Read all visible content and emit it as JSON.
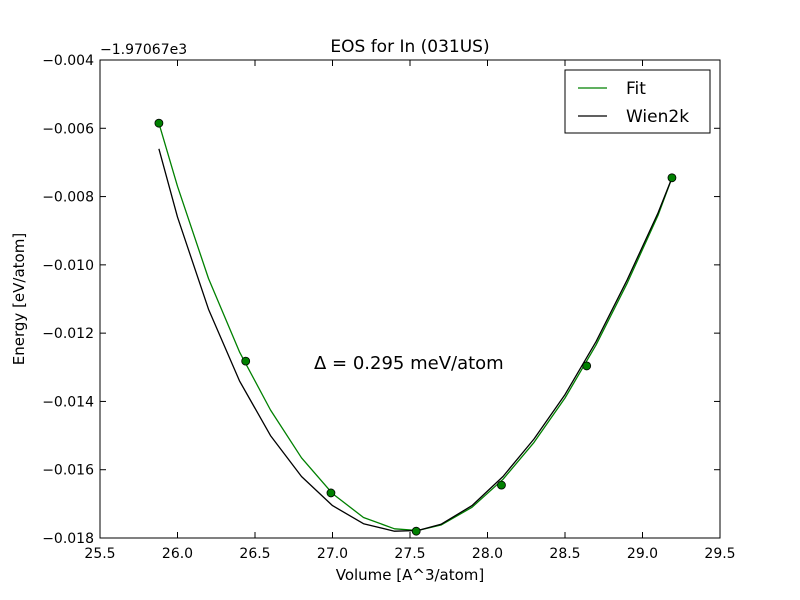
{
  "chart_data": {
    "type": "line",
    "title": "EOS for In (031US)",
    "xlabel": "Volume [A^3/atom]",
    "ylabel": "Energy [eV/atom]",
    "offset_label": "−1.97067e3",
    "annotation": "Δ = 0.295 meV/atom",
    "xlim": [
      25.5,
      29.5
    ],
    "ylim": [
      -0.018,
      -0.004
    ],
    "x_ticks": [
      25.5,
      26.0,
      26.5,
      27.0,
      27.5,
      28.0,
      28.5,
      29.0,
      29.5
    ],
    "x_tick_labels": [
      "25.5",
      "26.0",
      "26.5",
      "27.0",
      "27.5",
      "28.0",
      "28.5",
      "29.0",
      "29.5"
    ],
    "y_ticks": [
      -0.004,
      -0.006,
      -0.008,
      -0.01,
      -0.012,
      -0.014,
      -0.016,
      -0.018
    ],
    "y_tick_labels": [
      "−0.004",
      "−0.006",
      "−0.008",
      "−0.010",
      "−0.012",
      "−0.014",
      "−0.016",
      "−0.018"
    ],
    "grid": false,
    "legend_position": "top-right",
    "series": [
      {
        "name": "Fit",
        "color": "#008000",
        "style": "line",
        "x": [
          25.88,
          26.0,
          26.2,
          26.4,
          26.6,
          26.8,
          27.0,
          27.2,
          27.4,
          27.55,
          27.7,
          27.9,
          28.1,
          28.3,
          28.5,
          28.7,
          28.9,
          29.1,
          29.19
        ],
        "y": [
          -0.00585,
          -0.0077,
          -0.0104,
          -0.01255,
          -0.01425,
          -0.01565,
          -0.0167,
          -0.0174,
          -0.01773,
          -0.01778,
          -0.01762,
          -0.0171,
          -0.01628,
          -0.0152,
          -0.0139,
          -0.01235,
          -0.01055,
          -0.00855,
          -0.00745
        ]
      },
      {
        "name": "Wien2k",
        "color": "#000000",
        "style": "line",
        "x": [
          25.88,
          26.0,
          26.2,
          26.4,
          26.6,
          26.8,
          27.0,
          27.2,
          27.4,
          27.55,
          27.7,
          27.9,
          28.1,
          28.3,
          28.5,
          28.7,
          28.9,
          29.1,
          29.19
        ],
        "y": [
          -0.0066,
          -0.0086,
          -0.0113,
          -0.0134,
          -0.015,
          -0.0162,
          -0.01705,
          -0.01758,
          -0.0178,
          -0.01778,
          -0.0176,
          -0.01705,
          -0.0162,
          -0.0151,
          -0.0138,
          -0.01225,
          -0.01045,
          -0.00848,
          -0.00745
        ]
      },
      {
        "name": "",
        "color": "#008000",
        "style": "points",
        "x": [
          25.88,
          26.44,
          26.99,
          27.54,
          28.09,
          28.64,
          29.19
        ],
        "y": [
          -0.00585,
          -0.01282,
          -0.01668,
          -0.0178,
          -0.01645,
          -0.01296,
          -0.00745
        ]
      }
    ]
  }
}
